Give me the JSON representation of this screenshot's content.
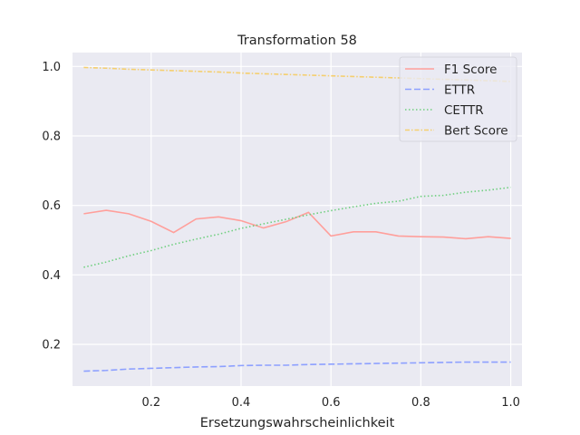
{
  "chart_data": {
    "type": "line",
    "title": "Transformation 58",
    "xlabel": "Ersetzungswahrscheinlichkeit",
    "ylabel": "",
    "xlim": [
      0.025,
      1.025
    ],
    "ylim": [
      0.08,
      1.04
    ],
    "xticks": [
      0.2,
      0.4,
      0.6,
      0.8,
      1.0
    ],
    "xtick_labels": [
      "0.2",
      "0.4",
      "0.6",
      "0.8",
      "1.0"
    ],
    "yticks": [
      0.2,
      0.4,
      0.6,
      0.8,
      1.0
    ],
    "ytick_labels": [
      "0.2",
      "0.4",
      "0.6",
      "0.8",
      "1.0"
    ],
    "grid": true,
    "legend_position": "top-right",
    "x": [
      0.05,
      0.1,
      0.15,
      0.2,
      0.25,
      0.3,
      0.35,
      0.4,
      0.45,
      0.5,
      0.55,
      0.6,
      0.65,
      0.7,
      0.75,
      0.8,
      0.85,
      0.9,
      0.95,
      1.0
    ],
    "series": [
      {
        "name": "F1 Score",
        "color": "#ff9f9b",
        "style": "solid",
        "values": [
          0.576,
          0.586,
          0.576,
          0.554,
          0.522,
          0.561,
          0.567,
          0.556,
          0.535,
          0.553,
          0.58,
          0.512,
          0.524,
          0.524,
          0.512,
          0.51,
          0.509,
          0.504,
          0.51,
          0.505
        ]
      },
      {
        "name": "ETTR",
        "color": "#8da0ff",
        "style": "dashed",
        "values": [
          0.123,
          0.125,
          0.129,
          0.131,
          0.133,
          0.135,
          0.136,
          0.139,
          0.14,
          0.14,
          0.142,
          0.143,
          0.144,
          0.145,
          0.146,
          0.147,
          0.148,
          0.149,
          0.149,
          0.149
        ]
      },
      {
        "name": "CETTR",
        "color": "#6fcf7f",
        "style": "dotted",
        "values": [
          0.422,
          0.437,
          0.455,
          0.47,
          0.488,
          0.503,
          0.517,
          0.534,
          0.547,
          0.56,
          0.573,
          0.585,
          0.596,
          0.606,
          0.612,
          0.626,
          0.629,
          0.638,
          0.644,
          0.652
        ]
      },
      {
        "name": "Bert Score",
        "color": "#f5cf6f",
        "style": "dashdot",
        "values": [
          0.997,
          0.995,
          0.992,
          0.99,
          0.988,
          0.986,
          0.984,
          0.981,
          0.979,
          0.977,
          0.975,
          0.973,
          0.971,
          0.969,
          0.967,
          0.965,
          0.963,
          0.961,
          0.959,
          0.957
        ]
      }
    ]
  }
}
